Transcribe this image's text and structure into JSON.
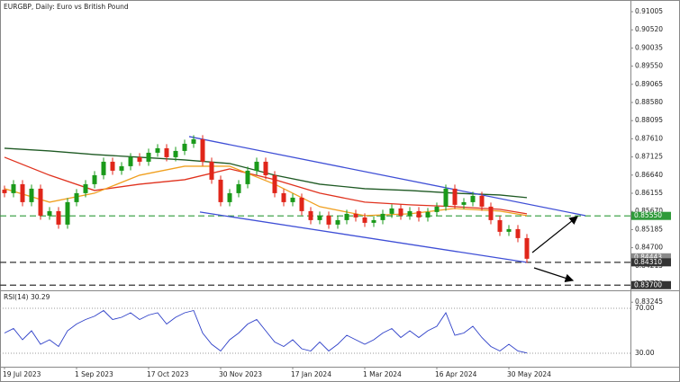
{
  "chart_data": {
    "type": "candlestick",
    "title": "EURGBP, Daily:  Euro vs British Pound",
    "up_color": "#1a9a1a",
    "down_color": "#e0261a",
    "open": [
      0.8625,
      0.86157,
      0.86397,
      0.85917,
      0.86277,
      0.85557,
      0.85677,
      0.85317,
      0.85917,
      0.86157,
      0.86397,
      0.86637,
      0.86997,
      0.86757,
      0.86877,
      0.87117,
      0.86997,
      0.87237,
      0.87357,
      0.87117,
      0.87285,
      0.87477,
      0.87597,
      0.86997,
      0.86517,
      0.85917,
      0.86157,
      0.86397,
      0.86757,
      0.86997,
      0.86637,
      0.86157,
      0.85917,
      0.86037,
      0.85677,
      0.85437,
      0.85557,
      0.85317,
      0.85437,
      0.85605,
      0.85509,
      0.85365,
      0.85437,
      0.85605,
      0.85749,
      0.85557,
      0.85677,
      0.85509,
      0.85653,
      0.85797,
      0.86277,
      0.85845,
      0.85917,
      0.86085,
      0.85797,
      0.85437,
      0.85125,
      0.85197,
      0.84957
    ],
    "high": [
      0.8636,
      0.86507,
      0.86507,
      0.86387,
      0.86387,
      0.85787,
      0.85787,
      0.86027,
      0.86267,
      0.86507,
      0.86747,
      0.87107,
      0.87107,
      0.86987,
      0.87227,
      0.87227,
      0.87347,
      0.87467,
      0.87467,
      0.87395,
      0.87587,
      0.87707,
      0.87707,
      0.87107,
      0.86627,
      0.86267,
      0.86507,
      0.86867,
      0.87107,
      0.87107,
      0.86747,
      0.86267,
      0.86147,
      0.86147,
      0.85787,
      0.85667,
      0.85667,
      0.85547,
      0.85715,
      0.85715,
      0.85619,
      0.85547,
      0.85715,
      0.85859,
      0.85859,
      0.85787,
      0.85787,
      0.85763,
      0.85907,
      0.86387,
      0.86387,
      0.86027,
      0.86195,
      0.86195,
      0.85907,
      0.85547,
      0.85307,
      0.85307,
      0.85067
    ],
    "low": [
      0.86047,
      0.86047,
      0.85807,
      0.85807,
      0.85447,
      0.85447,
      0.85207,
      0.85207,
      0.85807,
      0.86047,
      0.86287,
      0.86527,
      0.86647,
      0.86647,
      0.86767,
      0.86887,
      0.86887,
      0.87127,
      0.87007,
      0.87007,
      0.87175,
      0.87367,
      0.86887,
      0.86407,
      0.85807,
      0.85807,
      0.86047,
      0.86287,
      0.86647,
      0.86527,
      0.86047,
      0.85807,
      0.85807,
      0.85567,
      0.85327,
      0.85327,
      0.85207,
      0.85207,
      0.85327,
      0.85399,
      0.85255,
      0.85255,
      0.85327,
      0.85495,
      0.85447,
      0.85447,
      0.85399,
      0.85399,
      0.85543,
      0.85687,
      0.85735,
      0.85735,
      0.85807,
      0.85687,
      0.85327,
      0.85015,
      0.85015,
      0.84847,
      0.84295
    ],
    "close": [
      0.86157,
      0.86397,
      0.85917,
      0.86277,
      0.85557,
      0.85677,
      0.85317,
      0.85917,
      0.86157,
      0.86397,
      0.86637,
      0.86997,
      0.86757,
      0.86877,
      0.87117,
      0.86997,
      0.87237,
      0.87357,
      0.87117,
      0.87285,
      0.87477,
      0.87597,
      0.86997,
      0.86517,
      0.85917,
      0.86157,
      0.86397,
      0.86757,
      0.86997,
      0.86637,
      0.86157,
      0.85917,
      0.86037,
      0.85677,
      0.85437,
      0.85557,
      0.85317,
      0.85437,
      0.85605,
      0.85509,
      0.85365,
      0.85437,
      0.85605,
      0.85749,
      0.85557,
      0.85677,
      0.85509,
      0.85653,
      0.85797,
      0.86277,
      0.85845,
      0.85917,
      0.86085,
      0.85797,
      0.85437,
      0.85125,
      0.85197,
      0.84957,
      0.84405
    ],
    "xlim": [
      -0.5,
      69.5
    ],
    "xticks": [
      {
        "value": 0,
        "label": "19 Jul 2023"
      },
      {
        "value": 8,
        "label": "1 Sep 2023"
      },
      {
        "value": 16,
        "label": "17 Oct 2023"
      },
      {
        "value": 24,
        "label": "30 Nov 2023"
      },
      {
        "value": 32,
        "label": "17 Jan 2024"
      },
      {
        "value": 40,
        "label": "1 Mar 2024"
      },
      {
        "value": 48,
        "label": "16 Apr 2024"
      },
      {
        "value": 56,
        "label": "30 May 2024"
      }
    ],
    "ylim": [
      0.83586,
      0.91197
    ],
    "yticks": [
      0.91005,
      {
        "value": 0.9052,
        "label": "0.90520"
      },
      0.90035,
      {
        "value": 0.8955,
        "label": "0.89550"
      },
      0.89065,
      {
        "value": 0.8858,
        "label": "0.88580"
      },
      0.88095,
      {
        "value": 0.8761,
        "label": "0.87610"
      },
      0.87125,
      {
        "value": 0.8664,
        "label": "0.86640"
      },
      0.86155,
      {
        "value": 0.8567,
        "label": "0.85670"
      },
      0.85185,
      {
        "value": 0.847,
        "label": "0.84700"
      },
      0.84215,
      {
        "value": 0.8373,
        "label": "0.83730"
      },
      0.83245
    ],
    "series": [
      {
        "color": "#1f5a24",
        "x": [
          0,
          5,
          10,
          15,
          20,
          25,
          30,
          35,
          40,
          45,
          50,
          55,
          58
        ],
        "values": [
          0.87357,
          0.87285,
          0.87189,
          0.87117,
          0.87045,
          0.86949,
          0.86637,
          0.86397,
          0.86277,
          0.86229,
          0.86157,
          0.86109,
          0.86037
        ]
      },
      {
        "color": "#e0321e",
        "x": [
          0,
          5,
          10,
          15,
          20,
          25,
          30,
          35,
          40,
          45,
          50,
          55,
          58
        ],
        "values": [
          0.87117,
          0.86637,
          0.86229,
          0.86397,
          0.86517,
          0.86805,
          0.86517,
          0.86157,
          0.85917,
          0.85845,
          0.85797,
          0.85725,
          0.85605
        ]
      },
      {
        "color": "#f0a020",
        "x": [
          0,
          5,
          10,
          15,
          20,
          25,
          30,
          35,
          40,
          45,
          50,
          55,
          58
        ],
        "values": [
          0.86277,
          0.85917,
          0.86157,
          0.86637,
          0.86877,
          0.86877,
          0.86397,
          0.85797,
          0.85557,
          0.85605,
          0.85749,
          0.85677,
          0.85557
        ]
      }
    ],
    "trendlines": [
      {
        "color": "#3f4fd6",
        "x": [
          20.5,
          64.5
        ],
        "values": [
          0.87669,
          0.85557
        ]
      },
      {
        "color": "#3f4fd6",
        "x": [
          21.7,
          58
        ],
        "values": [
          0.85653,
          0.84309
        ]
      }
    ],
    "levels": [
      {
        "value": 0.8555,
        "label": "0.85550",
        "color": "#2f9a3a",
        "line": true
      },
      {
        "value": 0.84443,
        "label": "0.84443",
        "color": "#8a8a8a",
        "line": false
      },
      {
        "value": 0.8431,
        "label": "0.84310",
        "color": "#333333",
        "line": true
      },
      {
        "value": 0.837,
        "label": "0.83700",
        "color": "#333333",
        "line": true
      }
    ],
    "rsi": {
      "title": "RSI(14) 30.29",
      "color": "#2d3fc8",
      "ylim": [
        18,
        84.4
      ],
      "yticks": [
        {
          "value": 70,
          "label": "70.00"
        },
        {
          "value": 30,
          "label": "30.00"
        }
      ],
      "values": [
        48,
        52,
        42,
        50,
        38,
        42,
        36,
        50,
        56,
        60,
        63,
        68,
        60,
        62,
        66,
        60,
        64,
        66,
        56,
        62,
        66,
        68,
        48,
        38,
        32,
        42,
        48,
        56,
        60,
        50,
        40,
        36,
        42,
        34,
        32,
        40,
        32,
        38,
        46,
        42,
        38,
        42,
        48,
        52,
        44,
        50,
        44,
        50,
        54,
        66,
        46,
        48,
        54,
        44,
        36,
        32,
        38,
        32,
        30.29
      ]
    }
  }
}
